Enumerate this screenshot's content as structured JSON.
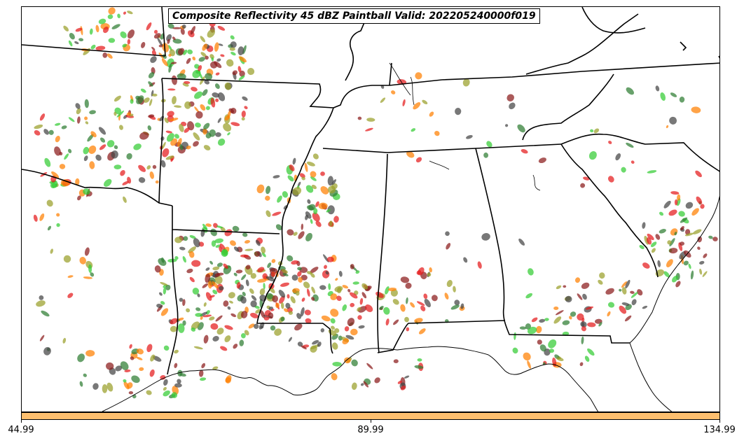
{
  "title": "Composite Reflectivity 45 dBZ Paintball Valid: 202205240000f019",
  "colorbar": {
    "fill_color": "#fdbf6f",
    "ticks": [
      "44.99",
      "89.99",
      "134.99"
    ]
  },
  "map": {
    "region": "Southeastern United States",
    "background": "#ffffff",
    "boundary_color": "#000000",
    "paintball_colors": [
      "#e41a1c",
      "#ff7f00",
      "#33cc33",
      "#8b1a1a",
      "#2e7d32",
      "#9aa02a",
      "#444444"
    ]
  }
}
